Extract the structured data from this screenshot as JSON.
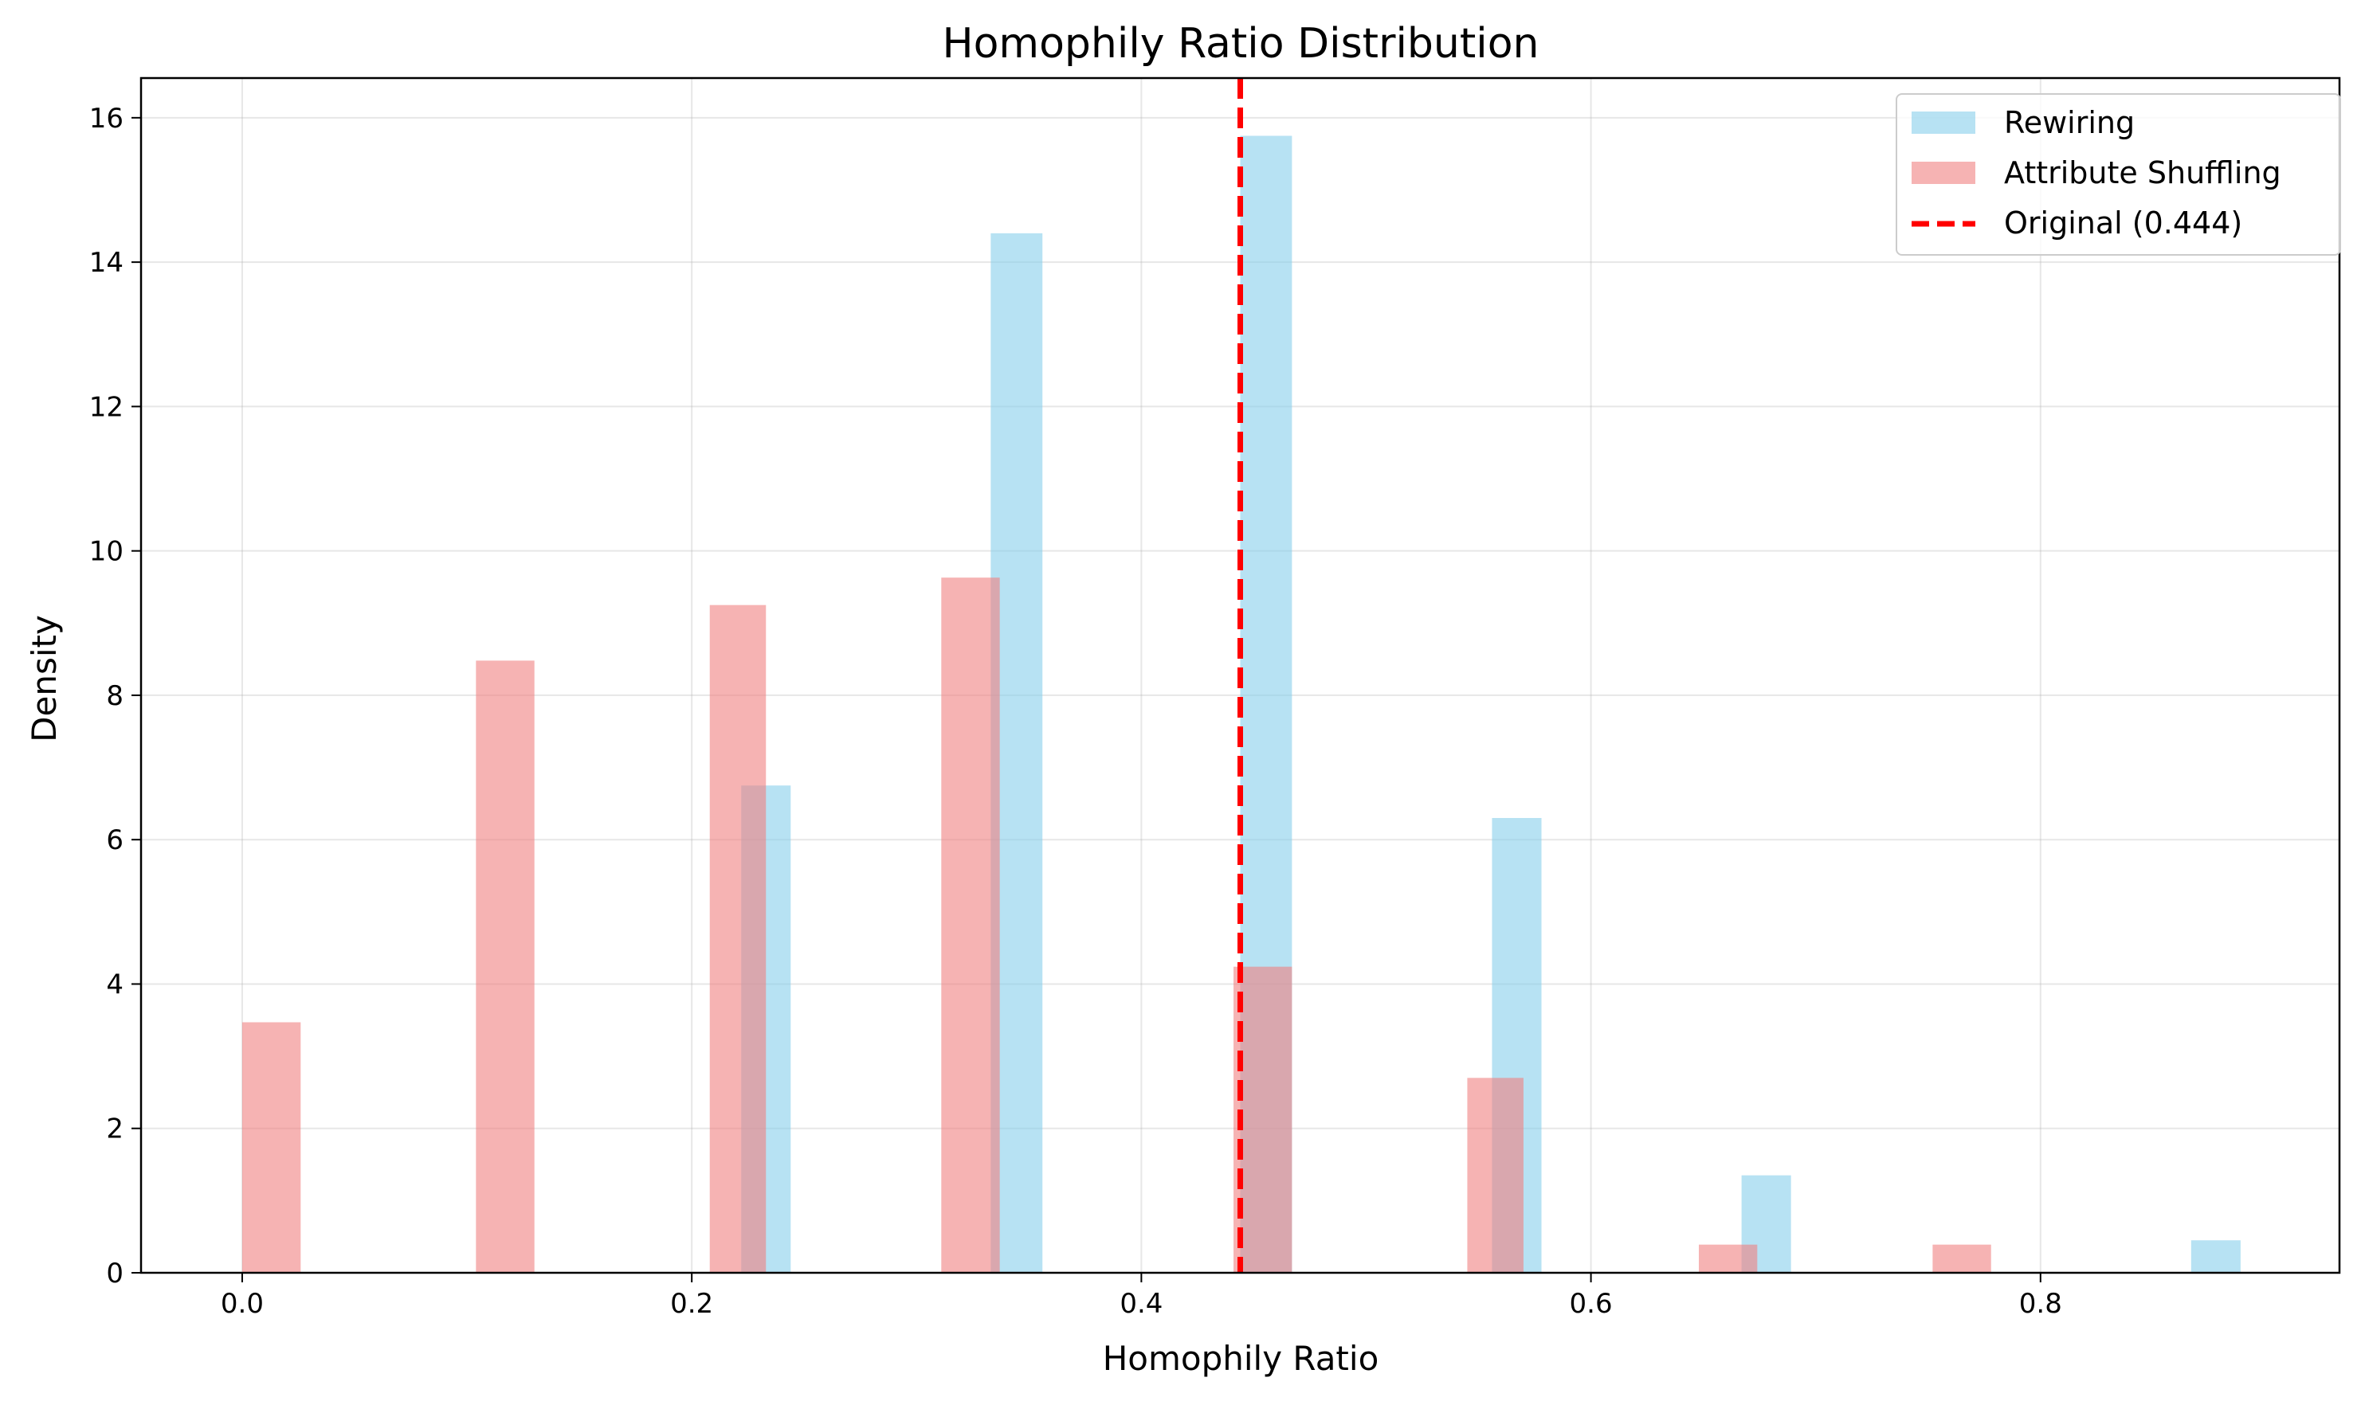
{
  "chart_data": {
    "type": "bar",
    "title": "Homophily Ratio Distribution",
    "xlabel": "Homophily Ratio",
    "ylabel": "Density",
    "xlim": [
      -0.045,
      0.933
    ],
    "ylim": [
      0,
      16.55
    ],
    "x_ticks": [
      0.0,
      0.2,
      0.4,
      0.6,
      0.8
    ],
    "x_tick_labels": [
      "0.0",
      "0.2",
      "0.4",
      "0.6",
      "0.8"
    ],
    "y_ticks": [
      0,
      2,
      4,
      6,
      8,
      10,
      12,
      14,
      16
    ],
    "y_tick_labels": [
      "0",
      "2",
      "4",
      "6",
      "8",
      "10",
      "12",
      "14",
      "16"
    ],
    "grid": true,
    "legend_position": "top-right",
    "series": [
      {
        "name": "Rewiring",
        "color": "#87ceeb",
        "opacity": 0.6,
        "bars": [
          {
            "x0": 0.222,
            "x1": 0.244,
            "value": 6.75
          },
          {
            "x0": 0.333,
            "x1": 0.356,
            "value": 14.4
          },
          {
            "x0": 0.444,
            "x1": 0.467,
            "value": 15.75
          },
          {
            "x0": 0.556,
            "x1": 0.578,
            "value": 6.3
          },
          {
            "x0": 0.667,
            "x1": 0.689,
            "value": 1.35
          },
          {
            "x0": 0.867,
            "x1": 0.889,
            "value": 0.45
          }
        ]
      },
      {
        "name": "Attribute Shuffling",
        "color": "#f08080",
        "opacity": 0.6,
        "bars": [
          {
            "x0": 0.0,
            "x1": 0.026,
            "value": 3.47
          },
          {
            "x0": 0.104,
            "x1": 0.13,
            "value": 8.48
          },
          {
            "x0": 0.208,
            "x1": 0.233,
            "value": 9.25
          },
          {
            "x0": 0.311,
            "x1": 0.337,
            "value": 9.63
          },
          {
            "x0": 0.441,
            "x1": 0.467,
            "value": 4.24
          },
          {
            "x0": 0.545,
            "x1": 0.57,
            "value": 2.7
          },
          {
            "x0": 0.648,
            "x1": 0.674,
            "value": 0.39
          },
          {
            "x0": 0.752,
            "x1": 0.778,
            "value": 0.39
          }
        ]
      }
    ],
    "reference_line": {
      "name": "Original (0.444)",
      "x": 0.444,
      "color": "#ff0000",
      "style": "dashed"
    }
  }
}
